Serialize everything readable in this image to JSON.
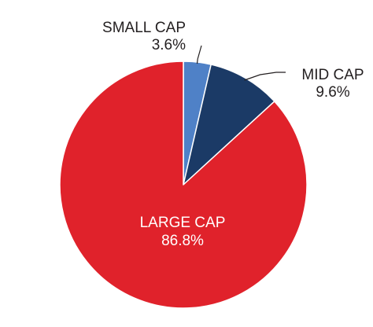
{
  "chart_data": {
    "type": "pie",
    "start_angle_deg": 0,
    "direction": "clockwise",
    "slices": [
      {
        "label": "SMALL CAP",
        "value_text": "3.6%",
        "value": 3.6,
        "color": "#4f81c7"
      },
      {
        "label": "MID CAP",
        "value_text": "9.6%",
        "value": 9.6,
        "color": "#1b3a66"
      },
      {
        "label": "LARGE CAP",
        "value_text": "86.8%",
        "value": 86.8,
        "color": "#e0222b"
      }
    ]
  }
}
